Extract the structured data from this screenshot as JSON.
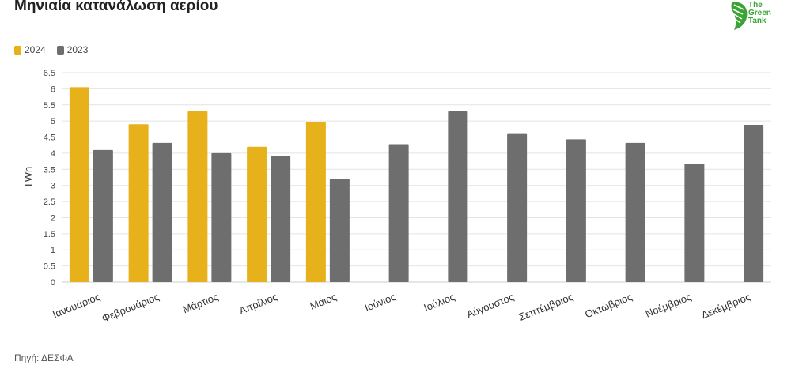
{
  "title": "Μηνιαία κατανάλωση αερίου",
  "logo": {
    "lines": [
      "The",
      "Green",
      "Tank"
    ],
    "color": "#3aa535"
  },
  "source": "Πηγή: ΔΕΣΦΑ",
  "chart_data": {
    "type": "bar",
    "title": "Μηνιαία κατανάλωση αερίου",
    "xlabel": "",
    "ylabel": "TWh",
    "ylim": [
      0,
      6.5
    ],
    "yticks": [
      "0",
      "0.5",
      "1",
      "1.5",
      "2",
      "2.5",
      "3",
      "3.5",
      "4",
      "4.5",
      "5",
      "5.5",
      "6",
      "6.5"
    ],
    "grid": true,
    "legend_position": "top-left",
    "categories": [
      "Ιανουάριος",
      "Φεβρουάριος",
      "Μάρτιος",
      "Απρίλιος",
      "Μάιος",
      "Ιούνιος",
      "Ιούλιος",
      "Αύγουστος",
      "Σεπτέμβριος",
      "Οκτώβριος",
      "Νοέμβριος",
      "Δεκέμβριος"
    ],
    "series": [
      {
        "name": "2024",
        "color": "#e6b11a",
        "values": [
          6.05,
          4.9,
          5.3,
          4.2,
          4.97,
          null,
          null,
          null,
          null,
          null,
          null,
          null
        ]
      },
      {
        "name": "2023",
        "color": "#6e6e6e",
        "values": [
          4.1,
          4.32,
          4.0,
          3.9,
          3.2,
          4.28,
          5.3,
          4.62,
          4.43,
          4.32,
          3.68,
          4.88
        ]
      }
    ]
  }
}
